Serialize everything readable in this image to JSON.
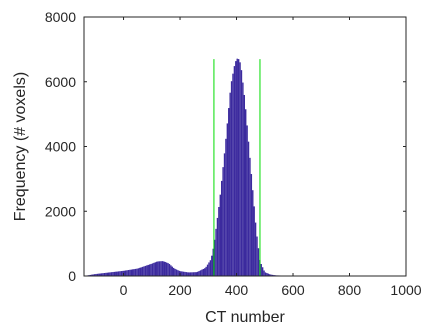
{
  "chart_data": {
    "type": "histogram",
    "xlabel": "CT number",
    "ylabel": "Frequency (# voxels)",
    "xlim": [
      -140,
      1000
    ],
    "ylim": [
      0,
      8000
    ],
    "xticks": [
      0,
      200,
      400,
      600,
      800,
      1000
    ],
    "yticks": [
      0,
      2000,
      4000,
      6000,
      8000
    ],
    "bin_width": 5,
    "bar_color": "#3b2a9e",
    "line_color": "#00dd00",
    "vertical_lines": [
      {
        "x": 320,
        "y_top": 6700
      },
      {
        "x": 483,
        "y_top": 6700
      }
    ],
    "profile": {
      "x": [
        -140,
        -100,
        -50,
        0,
        50,
        100,
        120,
        140,
        160,
        180,
        200,
        230,
        260,
        290,
        310,
        320,
        340,
        360,
        380,
        395,
        405,
        415,
        430,
        450,
        470,
        483,
        500,
        520,
        540,
        600,
        800,
        1000
      ],
      "y": [
        0,
        60,
        110,
        160,
        230,
        380,
        450,
        460,
        390,
        230,
        150,
        110,
        120,
        250,
        520,
        950,
        2300,
        4000,
        5900,
        6600,
        6750,
        6550,
        5400,
        3400,
        1400,
        460,
        120,
        45,
        20,
        5,
        0,
        0
      ]
    }
  }
}
